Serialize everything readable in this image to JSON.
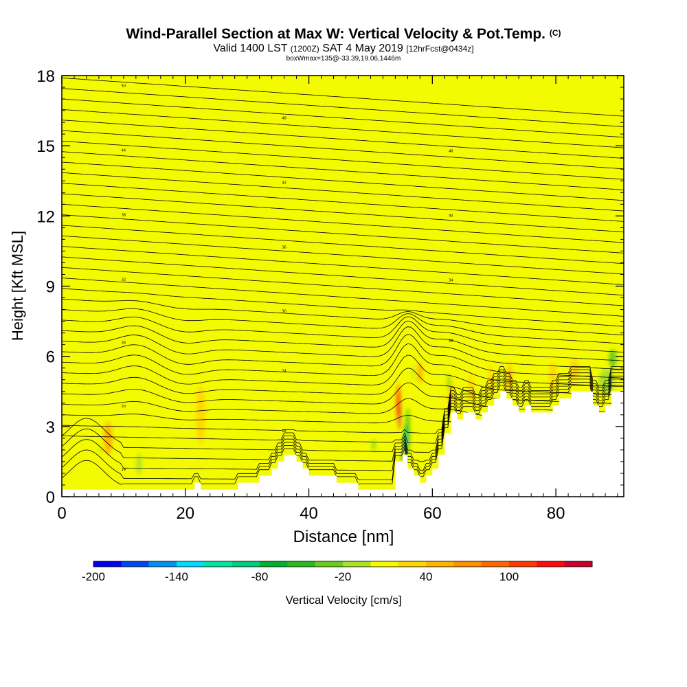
{
  "header": {
    "title": "Wind-Parallel Section at Max W: Vertical Velocity & Pot.Temp.",
    "copyright": "(C)",
    "valid_prefix": "Valid 1400 LST",
    "valid_utc": "(1200Z)",
    "valid_date": "SAT 4 May 2019",
    "forecast": "[12hrFcst@0434z]",
    "box_info": "boxWmax=135@-33.39,19.06,1446m"
  },
  "colors": {
    "background_field": "#f4fa00",
    "warm_field": "#ffd700",
    "terrain": "#ffffff",
    "contour": "#000000"
  },
  "chart_data": {
    "type": "heatmap",
    "title": "Wind-Parallel Section at Max W: Vertical Velocity & Pot.Temp.",
    "xlabel": "Distance [nm]",
    "ylabel": "Height [Kft MSL]",
    "xlim": [
      0,
      91
    ],
    "ylim": [
      0,
      18
    ],
    "xticks": [
      0,
      20,
      40,
      60,
      80
    ],
    "yticks": [
      0,
      3,
      6,
      9,
      12,
      15,
      18
    ],
    "colorbar": {
      "label": "Vertical Velocity [cm/s]",
      "tick_labels": [
        -200,
        -140,
        -80,
        -20,
        40,
        100
      ],
      "min": -200,
      "step": 20,
      "colors": [
        "#0000f0",
        "#0048ee",
        "#0090f0",
        "#00dcff",
        "#00e6a0",
        "#00cd80",
        "#00b030",
        "#28ba1c",
        "#6acc1e",
        "#aae028",
        "#f4fa00",
        "#ffd700",
        "#ffb400",
        "#ff9000",
        "#ff6a00",
        "#ff3a00",
        "#ff0a0a",
        "#c80030"
      ]
    },
    "potential_temperature_contours": {
      "units": "K",
      "label_values": [
        50,
        48,
        46,
        44,
        42,
        40,
        38,
        36,
        34,
        32,
        30,
        28,
        26,
        24,
        22,
        20,
        18,
        16,
        14
      ]
    },
    "terrain_profile": {
      "x": [
        0,
        21.5,
        21.5,
        22.5,
        22.5,
        28.5,
        28.5,
        32,
        32,
        34,
        34,
        35,
        35,
        36,
        36,
        38,
        38,
        39,
        39,
        40,
        40,
        44.5,
        44.5,
        48,
        48,
        54,
        54,
        55.2,
        55.2,
        56,
        56,
        57,
        57,
        58,
        58,
        59,
        59,
        60,
        60,
        61,
        61,
        62,
        62,
        63,
        63,
        64,
        64,
        65,
        65,
        67,
        67,
        68,
        68,
        69,
        69,
        70,
        70,
        71,
        71,
        72,
        72,
        73,
        73,
        74,
        74,
        75,
        75,
        76,
        76,
        79.5,
        79.5,
        80.5,
        80.5,
        82.5,
        82.5,
        86,
        86,
        87,
        87,
        88,
        88,
        89,
        89,
        91
      ],
      "height": [
        0.3,
        0.3,
        0.6,
        0.6,
        0.3,
        0.3,
        0.6,
        0.6,
        0.9,
        0.9,
        1.2,
        1.2,
        1.5,
        1.5,
        1.8,
        1.8,
        1.5,
        1.5,
        1.2,
        1.2,
        0.9,
        0.9,
        0.6,
        0.6,
        0.3,
        0.3,
        1.5,
        1.5,
        1.8,
        1.8,
        1.2,
        1.2,
        0.9,
        0.9,
        0.6,
        0.6,
        0.9,
        0.9,
        1.2,
        1.2,
        1.8,
        1.8,
        2.7,
        2.7,
        3.6,
        3.6,
        3.3,
        3.3,
        3.6,
        3.6,
        3.3,
        3.3,
        3.6,
        3.6,
        3.9,
        3.9,
        4.2,
        4.2,
        4.5,
        4.5,
        4.2,
        4.2,
        3.9,
        3.9,
        3.6,
        3.6,
        3.9,
        3.9,
        3.6,
        3.6,
        3.9,
        3.9,
        4.2,
        4.2,
        4.5,
        4.5,
        3.9,
        3.9,
        3.6,
        3.6,
        3.9,
        3.9,
        4.5,
        4.5
      ]
    },
    "color_blobs": [
      {
        "x": 5,
        "y": 16,
        "w": 1.6,
        "h": 4,
        "v": 10
      },
      {
        "x": 8,
        "y": 14,
        "w": 2,
        "h": 5,
        "v": 10
      },
      {
        "x": 14,
        "y": 16.5,
        "w": 2,
        "h": 3,
        "v": 10
      },
      {
        "x": 21,
        "y": 12,
        "w": 2.5,
        "h": 6,
        "v": 10
      },
      {
        "x": 26,
        "y": 15,
        "w": 4,
        "h": 4,
        "v": 10
      },
      {
        "x": 34,
        "y": 16,
        "w": 2.5,
        "h": 3,
        "v": 10
      },
      {
        "x": 42,
        "y": 14,
        "w": 3,
        "h": 5,
        "v": 10
      },
      {
        "x": 50,
        "y": 15,
        "w": 2,
        "h": 4,
        "v": 10
      },
      {
        "x": 60,
        "y": 16,
        "w": 2,
        "h": 3,
        "v": 10
      },
      {
        "x": 68,
        "y": 14,
        "w": 2,
        "h": 5,
        "v": 10
      },
      {
        "x": 75,
        "y": 16,
        "w": 1.6,
        "h": 3,
        "v": 10
      },
      {
        "x": 86,
        "y": 15,
        "w": 2.5,
        "h": 4,
        "v": 10
      },
      {
        "x": 4,
        "y": 3.5,
        "w": 1.6,
        "h": 2.2,
        "v": 10
      },
      {
        "x": 7.5,
        "y": 2.5,
        "w": 1.4,
        "h": 1.4,
        "v": 12
      },
      {
        "x": 12,
        "y": 4,
        "w": 1.6,
        "h": 2,
        "v": 10
      },
      {
        "x": 16.5,
        "y": 2.5,
        "w": 1.4,
        "h": 2,
        "v": 10
      },
      {
        "x": 22.5,
        "y": 3.5,
        "w": 1.5,
        "h": 2.5,
        "v": 11
      },
      {
        "x": 26,
        "y": 2.5,
        "w": 1.2,
        "h": 2,
        "v": 10
      },
      {
        "x": 30,
        "y": 2.5,
        "w": 1.2,
        "h": 2,
        "v": 10
      },
      {
        "x": 35,
        "y": 3,
        "w": 1.3,
        "h": 2,
        "v": 10
      },
      {
        "x": 44,
        "y": 1.5,
        "w": 1.2,
        "h": 1.5,
        "v": 10
      },
      {
        "x": 47,
        "y": 2,
        "w": 1.2,
        "h": 1.5,
        "v": 10
      },
      {
        "x": 63,
        "y": 4.3,
        "w": 1,
        "h": 1.3,
        "v": 11
      },
      {
        "x": 66.3,
        "y": 4.6,
        "w": 0.9,
        "h": 1.3,
        "v": 11
      },
      {
        "x": 69.5,
        "y": 5,
        "w": 0.9,
        "h": 1.2,
        "v": 11
      },
      {
        "x": 72.5,
        "y": 5.1,
        "w": 1,
        "h": 1.4,
        "v": 11
      },
      {
        "x": 72.5,
        "y": 5.1,
        "w": 0.4,
        "h": 0.8,
        "v": 13
      },
      {
        "x": 79.5,
        "y": 5.1,
        "w": 1.2,
        "h": 1.3,
        "v": 11
      },
      {
        "x": 83,
        "y": 5.4,
        "w": 1.5,
        "h": 1,
        "v": 11
      },
      {
        "x": 58,
        "y": 5.3,
        "w": 0.8,
        "h": 0.9,
        "v": 12
      },
      {
        "x": 54.5,
        "y": 4,
        "w": 0.8,
        "h": 1.7,
        "v": 13
      },
      {
        "x": 54.5,
        "y": 4,
        "w": 0.4,
        "h": 1.1,
        "v": 16
      },
      {
        "x": 54.7,
        "y": 3.4,
        "w": 0.3,
        "h": 1.1,
        "v": 17
      },
      {
        "x": 56,
        "y": 2.8,
        "w": 0.8,
        "h": 2,
        "v": 8
      },
      {
        "x": 55.7,
        "y": 2.6,
        "w": 0.6,
        "h": 1,
        "v": 6
      },
      {
        "x": 55.6,
        "y": 2.5,
        "w": 0.4,
        "h": 0.6,
        "v": 4
      },
      {
        "x": 55.4,
        "y": 2,
        "w": 0.3,
        "h": 0.4,
        "v": 2
      },
      {
        "x": 55.2,
        "y": 1.7,
        "w": 0.3,
        "h": 0.3,
        "v": 0
      },
      {
        "x": 62.7,
        "y": 4.9,
        "w": 0.4,
        "h": 0.7,
        "v": 8
      },
      {
        "x": 57,
        "y": 5.3,
        "w": 0.3,
        "h": 0.7,
        "v": 9
      },
      {
        "x": 50.5,
        "y": 2.2,
        "w": 0.4,
        "h": 0.5,
        "v": 8
      },
      {
        "x": 12.5,
        "y": 1.4,
        "w": 0.8,
        "h": 0.9,
        "v": 9
      },
      {
        "x": 6.3,
        "y": 2,
        "w": 0.25,
        "h": 0.25,
        "v": 8
      },
      {
        "x": 88.2,
        "y": 4.9,
        "w": 2.6,
        "h": 1.1,
        "v": 9
      },
      {
        "x": 89.2,
        "y": 5.9,
        "w": 1.2,
        "h": 0.8,
        "v": 8
      }
    ]
  }
}
